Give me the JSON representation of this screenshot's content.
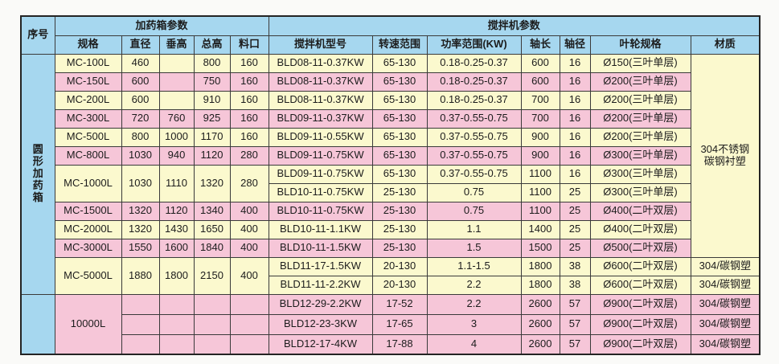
{
  "colors": {
    "header_blue": "#a6d7ef",
    "row_yellow": "#fbf9ce",
    "row_pink": "#f6c6d8",
    "border": "#3a3a3a"
  },
  "table": {
    "header": {
      "serial": "序号",
      "group_dosing": "加药箱参数",
      "group_mixer": "搅拌机参数",
      "dosing_cols": [
        "规格",
        "直径",
        "垂高",
        "总高",
        "料口"
      ],
      "mixer_cols": [
        "搅拌机型号",
        "转速范围",
        "功率范围(KW)",
        "轴长",
        "轴径",
        "叶轮规格",
        "材质"
      ]
    },
    "category_label": "圆形加药箱",
    "material_merged": "304不锈钢 碳钢衬塑",
    "rows": [
      {
        "color": "y",
        "cells": [
          {
            "t": [
              "圆",
              "形",
              "加",
              "药",
              "箱"
            ],
            "rs": 13,
            "cls": "b cat",
            "name": "category-cell"
          },
          {
            "t": "MC-100L",
            "name": "spec-cell"
          },
          {
            "t": "460"
          },
          {
            "t": ""
          },
          {
            "t": "800"
          },
          {
            "t": "160"
          },
          {
            "t": "BLD08-11-0.37KW",
            "name": "model-cell"
          },
          {
            "t": "65-130"
          },
          {
            "t": "0.18-0.25-0.37"
          },
          {
            "t": "600"
          },
          {
            "t": "16"
          },
          {
            "t": "Ø150(三叶单层)"
          },
          {
            "t": [
              "304不锈钢",
              "碳钢衬塑"
            ],
            "rs": 11,
            "cls": "y mat",
            "name": "material-merged-cell"
          }
        ]
      },
      {
        "color": "p",
        "cells": [
          {
            "t": "MC-150L",
            "name": "spec-cell"
          },
          {
            "t": "600"
          },
          {
            "t": ""
          },
          {
            "t": "750"
          },
          {
            "t": "160"
          },
          {
            "t": "BLD08-11-0.37KW",
            "name": "model-cell"
          },
          {
            "t": "65-130"
          },
          {
            "t": "0.18-0.25-0.37"
          },
          {
            "t": "600"
          },
          {
            "t": "16"
          },
          {
            "t": "Ø200(三叶单层)"
          }
        ]
      },
      {
        "color": "y",
        "cells": [
          {
            "t": "MC-200L",
            "name": "spec-cell"
          },
          {
            "t": "600"
          },
          {
            "t": ""
          },
          {
            "t": "910"
          },
          {
            "t": "160"
          },
          {
            "t": "BLD08-11-0.37KW",
            "name": "model-cell"
          },
          {
            "t": "65-130"
          },
          {
            "t": "0.18-0.25-0.37"
          },
          {
            "t": "700"
          },
          {
            "t": "16"
          },
          {
            "t": "Ø200(三叶单层)"
          }
        ]
      },
      {
        "color": "p",
        "cells": [
          {
            "t": "MC-300L",
            "name": "spec-cell"
          },
          {
            "t": "720"
          },
          {
            "t": "760"
          },
          {
            "t": "925"
          },
          {
            "t": "160"
          },
          {
            "t": "BLD09-11-0.37KW",
            "name": "model-cell"
          },
          {
            "t": "65-130"
          },
          {
            "t": "0.37-0.55-0.75"
          },
          {
            "t": "700"
          },
          {
            "t": "16"
          },
          {
            "t": "Ø200(三叶单层)"
          }
        ]
      },
      {
        "color": "y",
        "cells": [
          {
            "t": "MC-500L",
            "name": "spec-cell"
          },
          {
            "t": "800"
          },
          {
            "t": "1000"
          },
          {
            "t": "1170"
          },
          {
            "t": "160"
          },
          {
            "t": "BLD09-11-0.55KW",
            "name": "model-cell"
          },
          {
            "t": "65-130"
          },
          {
            "t": "0.37-0.55-0.75"
          },
          {
            "t": "900"
          },
          {
            "t": "16"
          },
          {
            "t": "Ø200(三叶单层)"
          }
        ]
      },
      {
        "color": "p",
        "cells": [
          {
            "t": "MC-800L",
            "name": "spec-cell"
          },
          {
            "t": "1030"
          },
          {
            "t": "940"
          },
          {
            "t": "1120"
          },
          {
            "t": "280"
          },
          {
            "t": "BLD09-11-0.75KW",
            "name": "model-cell"
          },
          {
            "t": "65-130"
          },
          {
            "t": "0.37-0.55-0.75"
          },
          {
            "t": "900"
          },
          {
            "t": "16"
          },
          {
            "t": "Ø300(三叶单层)"
          }
        ]
      },
      {
        "color": "y",
        "cells": [
          {
            "t": "MC-1000L",
            "rs": 2,
            "name": "spec-cell"
          },
          {
            "t": "1030",
            "rs": 2
          },
          {
            "t": "1110",
            "rs": 2
          },
          {
            "t": "1320",
            "rs": 2
          },
          {
            "t": "280",
            "rs": 2
          },
          {
            "t": "BLD09-11-0.75KW",
            "name": "model-cell"
          },
          {
            "t": "65-130"
          },
          {
            "t": "0.37-0.55-0.75"
          },
          {
            "t": "1100"
          },
          {
            "t": "16"
          },
          {
            "t": "Ø300(三叶单层)"
          }
        ]
      },
      {
        "color": "y",
        "cells": [
          {
            "t": "BLD10-11-0.75KW",
            "name": "model-cell"
          },
          {
            "t": "25-130"
          },
          {
            "t": "0.75"
          },
          {
            "t": "1100"
          },
          {
            "t": "25"
          },
          {
            "t": "Ø300(三叶单层)"
          }
        ]
      },
      {
        "color": "p",
        "cells": [
          {
            "t": "MC-1500L",
            "name": "spec-cell"
          },
          {
            "t": "1320"
          },
          {
            "t": "1120"
          },
          {
            "t": "1340"
          },
          {
            "t": "400"
          },
          {
            "t": "BLD10-11-0.75KW",
            "name": "model-cell"
          },
          {
            "t": "25-130"
          },
          {
            "t": "0.75"
          },
          {
            "t": "1100"
          },
          {
            "t": "25"
          },
          {
            "t": "Ø400(二叶双层)"
          }
        ]
      },
      {
        "color": "y",
        "cells": [
          {
            "t": "MC-2000L",
            "name": "spec-cell"
          },
          {
            "t": "1320"
          },
          {
            "t": "1430"
          },
          {
            "t": "1650"
          },
          {
            "t": "400"
          },
          {
            "t": "BLD10-11-1.1KW",
            "name": "model-cell"
          },
          {
            "t": "25-130"
          },
          {
            "t": "1.1"
          },
          {
            "t": "1400"
          },
          {
            "t": "25"
          },
          {
            "t": "Ø400(二叶双层)"
          }
        ]
      },
      {
        "color": "p",
        "cells": [
          {
            "t": "MC-3000L",
            "name": "spec-cell"
          },
          {
            "t": "1550"
          },
          {
            "t": "1600"
          },
          {
            "t": "1840"
          },
          {
            "t": "400"
          },
          {
            "t": "BLD10-11-1.5KW",
            "name": "model-cell"
          },
          {
            "t": "25-130"
          },
          {
            "t": "1.5"
          },
          {
            "t": "1500"
          },
          {
            "t": "25"
          },
          {
            "t": "Ø500(二叶双层)"
          }
        ]
      },
      {
        "color": "y",
        "cells": [
          {
            "t": "MC-5000L",
            "rs": 2,
            "name": "spec-cell"
          },
          {
            "t": "1880",
            "rs": 2
          },
          {
            "t": "1800",
            "rs": 2
          },
          {
            "t": "2150",
            "rs": 2
          },
          {
            "t": "400",
            "rs": 2
          },
          {
            "t": "BLD11-17-1.5KW",
            "name": "model-cell"
          },
          {
            "t": "20-130"
          },
          {
            "t": "1.1-1.5"
          },
          {
            "t": "1800"
          },
          {
            "t": "38"
          },
          {
            "t": "Ø600(二叶双层)"
          },
          {
            "t": "304/碳钢塑",
            "name": "material-cell"
          }
        ]
      },
      {
        "color": "y",
        "cells": [
          {
            "t": "BLD11-11-2.2KW",
            "name": "model-cell"
          },
          {
            "t": "20-130"
          },
          {
            "t": "2.2"
          },
          {
            "t": "1800"
          },
          {
            "t": "38"
          },
          {
            "t": "Ø600(二叶双层)"
          },
          {
            "t": "304/碳钢塑",
            "name": "material-cell"
          }
        ]
      },
      {
        "color": "p",
        "cls": "tall",
        "cells": [
          {
            "t": "",
            "rs": 3,
            "cls": "b",
            "name": "serial-blank-cell"
          },
          {
            "t": "10000L",
            "rs": 3,
            "name": "spec-cell"
          },
          {
            "t": ""
          },
          {
            "t": ""
          },
          {
            "t": ""
          },
          {
            "t": ""
          },
          {
            "t": "BLD12-29-2.2KW",
            "name": "model-cell"
          },
          {
            "t": "17-52"
          },
          {
            "t": "2.2"
          },
          {
            "t": "2600"
          },
          {
            "t": "57"
          },
          {
            "t": "Ø900(二叶双层)"
          },
          {
            "t": "304/碳钢塑",
            "name": "material-cell"
          }
        ]
      },
      {
        "color": "p",
        "cls": "tall",
        "cells": [
          {
            "t": ""
          },
          {
            "t": ""
          },
          {
            "t": ""
          },
          {
            "t": ""
          },
          {
            "t": "BLD12-23-3KW",
            "name": "model-cell"
          },
          {
            "t": "17-65"
          },
          {
            "t": "3"
          },
          {
            "t": "2600"
          },
          {
            "t": "57"
          },
          {
            "t": "Ø900(二叶双层)"
          },
          {
            "t": "304/碳钢塑",
            "name": "material-cell"
          }
        ]
      },
      {
        "color": "p",
        "cls": "tall",
        "cells": [
          {
            "t": ""
          },
          {
            "t": ""
          },
          {
            "t": ""
          },
          {
            "t": ""
          },
          {
            "t": "BLD12-17-4KW",
            "name": "model-cell"
          },
          {
            "t": "17-88"
          },
          {
            "t": "4"
          },
          {
            "t": "2600"
          },
          {
            "t": "57"
          },
          {
            "t": "Ø900(二叶双层)"
          },
          {
            "t": "304/碳钢塑",
            "name": "material-cell"
          }
        ]
      }
    ]
  }
}
